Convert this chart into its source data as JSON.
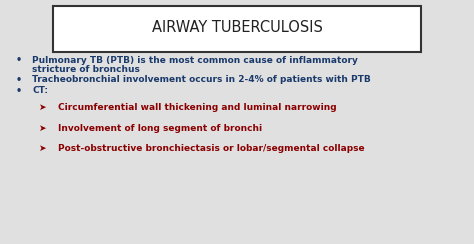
{
  "title": "AIRWAY TUBERCULOSIS",
  "bg_color": "#e0e0e0",
  "title_box_color": "#ffffff",
  "title_color": "#222222",
  "bullet_color": "#1a3a6b",
  "sub_bullet_color": "#8b0000",
  "bullet_symbol": "•",
  "sub_symbol": "➤",
  "line1a": "Pulmonary TB (PTB) is the most common cause of inflammatory",
  "line1b": "stricture of bronchus",
  "line2": "Tracheobronchial involvement occurs in 2-4% of patients with PTB",
  "line3": "CT:",
  "sub1": "Circumferential wall thickening and luminal narrowing",
  "sub2": "Involvement of long segment of bronchi",
  "sub3": "Post-obstructive bronchiectasis or lobar/segmental collapse",
  "title_fontsize": 10.5,
  "body_fontsize": 6.5,
  "bullet_fontsize": 7.0
}
